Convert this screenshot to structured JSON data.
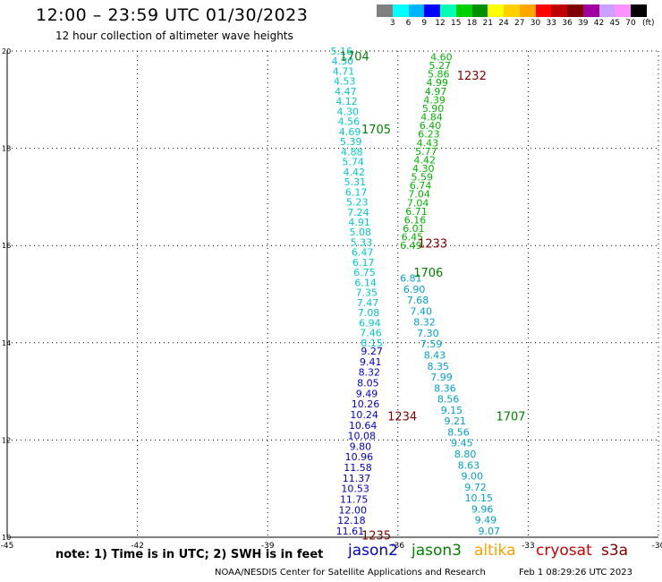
{
  "header": {
    "title": "12:00 – 23:59 UTC 01/30/2023",
    "subtitle": "12 hour collection of altimeter wave heights"
  },
  "colorbar": {
    "unit": "(ft)",
    "labels": [
      "3",
      "6",
      "9",
      "12",
      "15",
      "18",
      "21",
      "24",
      "27",
      "30",
      "33",
      "36",
      "39",
      "42",
      "45",
      "70"
    ],
    "colors": [
      "#808080",
      "#00ffff",
      "#00b4ff",
      "#0000ff",
      "#00ffb0",
      "#00d000",
      "#009000",
      "#ffff00",
      "#ffd000",
      "#ffa500",
      "#ff0000",
      "#c00000",
      "#800000",
      "#a000a0",
      "#c8a0ff",
      "#ff90ff",
      "#000000"
    ]
  },
  "axes": {
    "x_ticks": [
      "-45",
      "-42",
      "-39",
      "-36",
      "-33",
      "-30"
    ],
    "y_ticks": [
      "20",
      "18",
      "16",
      "14",
      "12",
      "10"
    ],
    "x_values": [
      -45,
      -42,
      -39,
      -36,
      -33,
      -30
    ],
    "y_values": [
      20,
      18,
      16,
      14,
      12,
      10
    ]
  },
  "tracks": [
    {
      "satellite": "jason2",
      "color": "#00c8c8",
      "start": {
        "lon": -37.3,
        "lat": 20.0
      },
      "end": {
        "lon": -36.6,
        "lat": 14.0
      },
      "values": [
        "5.16",
        "4.30",
        "4.71",
        "4.53",
        "4.47",
        "4.12",
        "4.30",
        "4.56",
        "4.69",
        "5.39",
        "4.88",
        "5.74",
        "4.42",
        "5.31",
        "6.17",
        "5.23",
        "7.24",
        "4.91",
        "5.08",
        "5.33",
        "6.47",
        "6.17",
        "6.75",
        "6.14",
        "7.35",
        "7.47",
        "7.08",
        "6.94",
        "7.46",
        "8.15"
      ]
    },
    {
      "satellite": "jason2",
      "color": "#0000c8",
      "start": {
        "lon": -36.6,
        "lat": 13.83
      },
      "end": {
        "lon": -37.1,
        "lat": 10.13
      },
      "values": [
        "9.27",
        "9.41",
        "8.32",
        "8.05",
        "9.49",
        "10.26",
        "10.24",
        "10.64",
        "10.08",
        "9.80",
        "10.96",
        "11.58",
        "11.37",
        "10.53",
        "11.75",
        "12.00",
        "12.18",
        "11.61"
      ]
    },
    {
      "satellite": "jason2",
      "color": "#00b400",
      "start": {
        "lon": -35.0,
        "lat": 19.88
      },
      "end": {
        "lon": -35.7,
        "lat": 16.0
      },
      "values": [
        "4.60",
        "5.27",
        "5.86",
        "4.99",
        "4.97",
        "4.39",
        "5.90",
        "4.84",
        "6.40",
        "6.23",
        "4.43",
        "5.77",
        "4.42",
        "4.30",
        "5.59",
        "6.74",
        "7.04",
        "7.04",
        "6.71",
        "6.16",
        "6.01",
        "6.45",
        "6.49"
      ]
    },
    {
      "satellite": "jason2",
      "color": "#00a0c8",
      "start": {
        "lon": -35.7,
        "lat": 15.33
      },
      "end": {
        "lon": -33.9,
        "lat": 10.13
      },
      "values": [
        "6.81",
        "6.90",
        "7.68",
        "7.40",
        "8.32",
        "7.30",
        "7.59",
        "8.43",
        "8.35",
        "7.99",
        "8.36",
        "8.56",
        "9.15",
        "9.21",
        "8.56",
        "9.45",
        "8.80",
        "8.63",
        "9.00",
        "9.72",
        "10.15",
        "9.96",
        "9.49",
        "9.07"
      ]
    }
  ],
  "pass_labels": [
    {
      "text": "1704",
      "color": "#008000",
      "lon": -37.0,
      "lat": 19.9
    },
    {
      "text": "1232",
      "color": "#800000",
      "lon": -34.3,
      "lat": 19.5
    },
    {
      "text": "1705",
      "color": "#008000",
      "lon": -36.5,
      "lat": 18.4
    },
    {
      "text": "1233",
      "color": "#800000",
      "lon": -35.2,
      "lat": 16.05
    },
    {
      "text": "1706",
      "color": "#008000",
      "lon": -35.3,
      "lat": 15.45
    },
    {
      "text": "1234",
      "color": "#800000",
      "lon": -35.9,
      "lat": 12.5
    },
    {
      "text": "1707",
      "color": "#008000",
      "lon": -33.4,
      "lat": 12.5
    },
    {
      "text": "1235",
      "color": "#800000",
      "lon": -36.5,
      "lat": 10.05
    }
  ],
  "footer": {
    "note": "note: 1) Time is in UTC; 2) SWH is in feet",
    "legend": [
      {
        "label": "jason2",
        "color": "#0000c8"
      },
      {
        "label": "jason3",
        "color": "#008000"
      },
      {
        "label": "altika",
        "color": "#ffa000"
      },
      {
        "label": "cryosat",
        "color": "#c80000"
      },
      {
        "label": "s3a",
        "color": "#800000"
      }
    ],
    "credit": "NOAA/NESDIS Center for Satellite Applications and Research",
    "timestamp": "Feb  1 08:29:26 UTC 2023"
  }
}
